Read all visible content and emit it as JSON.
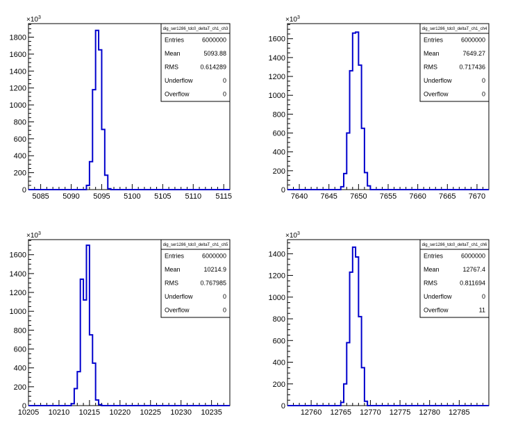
{
  "chart_data": [
    {
      "type": "histogram",
      "stats_title": "dig_ser1286_tdc0_deltaT_ch1_ch3",
      "y_exponent": "3",
      "xlim": [
        5083,
        5116
      ],
      "ylim": [
        0,
        1960
      ],
      "x_ticks": [
        5085,
        5090,
        5095,
        5100,
        5105,
        5110,
        5115
      ],
      "y_ticks": [
        0,
        200,
        400,
        600,
        800,
        1000,
        1200,
        1400,
        1600,
        1800
      ],
      "bin_width": 0.5,
      "bins": [
        [
          5092.5,
          50
        ],
        [
          5093.0,
          330
        ],
        [
          5093.5,
          1180
        ],
        [
          5094.0,
          1880
        ],
        [
          5094.5,
          1650
        ],
        [
          5095.0,
          710
        ],
        [
          5095.5,
          170
        ],
        [
          5096.0,
          10
        ]
      ],
      "stats": [
        {
          "label": "Entries",
          "value": "6000000"
        },
        {
          "label": "Mean",
          "value": "5093.88"
        },
        {
          "label": "RMS",
          "value": "0.614289"
        },
        {
          "label": "Underflow",
          "value": "0"
        },
        {
          "label": "Overflow",
          "value": "0"
        }
      ]
    },
    {
      "type": "histogram",
      "stats_title": "dig_ser1286_tdc0_deltaT_ch1_ch4",
      "y_exponent": "3",
      "xlim": [
        7638,
        7672
      ],
      "ylim": [
        0,
        1760
      ],
      "x_ticks": [
        7640,
        7645,
        7650,
        7655,
        7660,
        7665,
        7670
      ],
      "y_ticks": [
        0,
        200,
        400,
        600,
        800,
        1000,
        1200,
        1400,
        1600
      ],
      "bin_width": 0.5,
      "bins": [
        [
          7647.0,
          30
        ],
        [
          7647.5,
          170
        ],
        [
          7648.0,
          600
        ],
        [
          7648.5,
          1260
        ],
        [
          7649.0,
          1660
        ],
        [
          7649.5,
          1670
        ],
        [
          7650.0,
          1320
        ],
        [
          7650.5,
          650
        ],
        [
          7651.0,
          180
        ],
        [
          7651.5,
          40
        ]
      ],
      "stats": [
        {
          "label": "Entries",
          "value": "6000000"
        },
        {
          "label": "Mean",
          "value": "7649.27"
        },
        {
          "label": "RMS",
          "value": "0.717436"
        },
        {
          "label": "Underflow",
          "value": "0"
        },
        {
          "label": "Overflow",
          "value": "0"
        }
      ]
    },
    {
      "type": "histogram",
      "stats_title": "dig_ser1286_tdc0_deltaT_ch1_ch5",
      "y_exponent": "3",
      "xlim": [
        10205,
        10238
      ],
      "ylim": [
        0,
        1760
      ],
      "x_ticks": [
        10205,
        10210,
        10215,
        10220,
        10225,
        10230,
        10235
      ],
      "y_ticks": [
        0,
        200,
        400,
        600,
        800,
        1000,
        1200,
        1400,
        1600
      ],
      "bin_width": 0.5,
      "bins": [
        [
          10212.0,
          20
        ],
        [
          10212.5,
          180
        ],
        [
          10213.0,
          360
        ],
        [
          10213.5,
          1340
        ],
        [
          10214.0,
          1120
        ],
        [
          10214.5,
          1700
        ],
        [
          10215.0,
          750
        ],
        [
          10215.5,
          450
        ],
        [
          10216.0,
          60
        ],
        [
          10216.5,
          10
        ]
      ],
      "stats": [
        {
          "label": "Entries",
          "value": "6000000"
        },
        {
          "label": "Mean",
          "value": "10214.9"
        },
        {
          "label": "RMS",
          "value": "0.767985"
        },
        {
          "label": "Underflow",
          "value": "0"
        },
        {
          "label": "Overflow",
          "value": "0"
        }
      ]
    },
    {
      "type": "histogram",
      "stats_title": "dig_ser1286_tdc0_deltaT_ch1_ch6",
      "y_exponent": "3",
      "xlim": [
        12756,
        12790
      ],
      "ylim": [
        0,
        1530
      ],
      "x_ticks": [
        12760,
        12765,
        12770,
        12775,
        12780,
        12785
      ],
      "y_ticks": [
        0,
        200,
        400,
        600,
        800,
        1000,
        1200,
        1400
      ],
      "bin_width": 0.5,
      "bins": [
        [
          12765.0,
          30
        ],
        [
          12765.5,
          200
        ],
        [
          12766.0,
          580
        ],
        [
          12766.5,
          1230
        ],
        [
          12767.0,
          1460
        ],
        [
          12767.5,
          1370
        ],
        [
          12768.0,
          820
        ],
        [
          12768.5,
          350
        ],
        [
          12769.0,
          40
        ]
      ],
      "stats": [
        {
          "label": "Entries",
          "value": "6000000"
        },
        {
          "label": "Mean",
          "value": "12767.4"
        },
        {
          "label": "RMS",
          "value": "0.811694"
        },
        {
          "label": "Underflow",
          "value": "0"
        },
        {
          "label": "Overflow",
          "value": "11"
        }
      ]
    }
  ]
}
